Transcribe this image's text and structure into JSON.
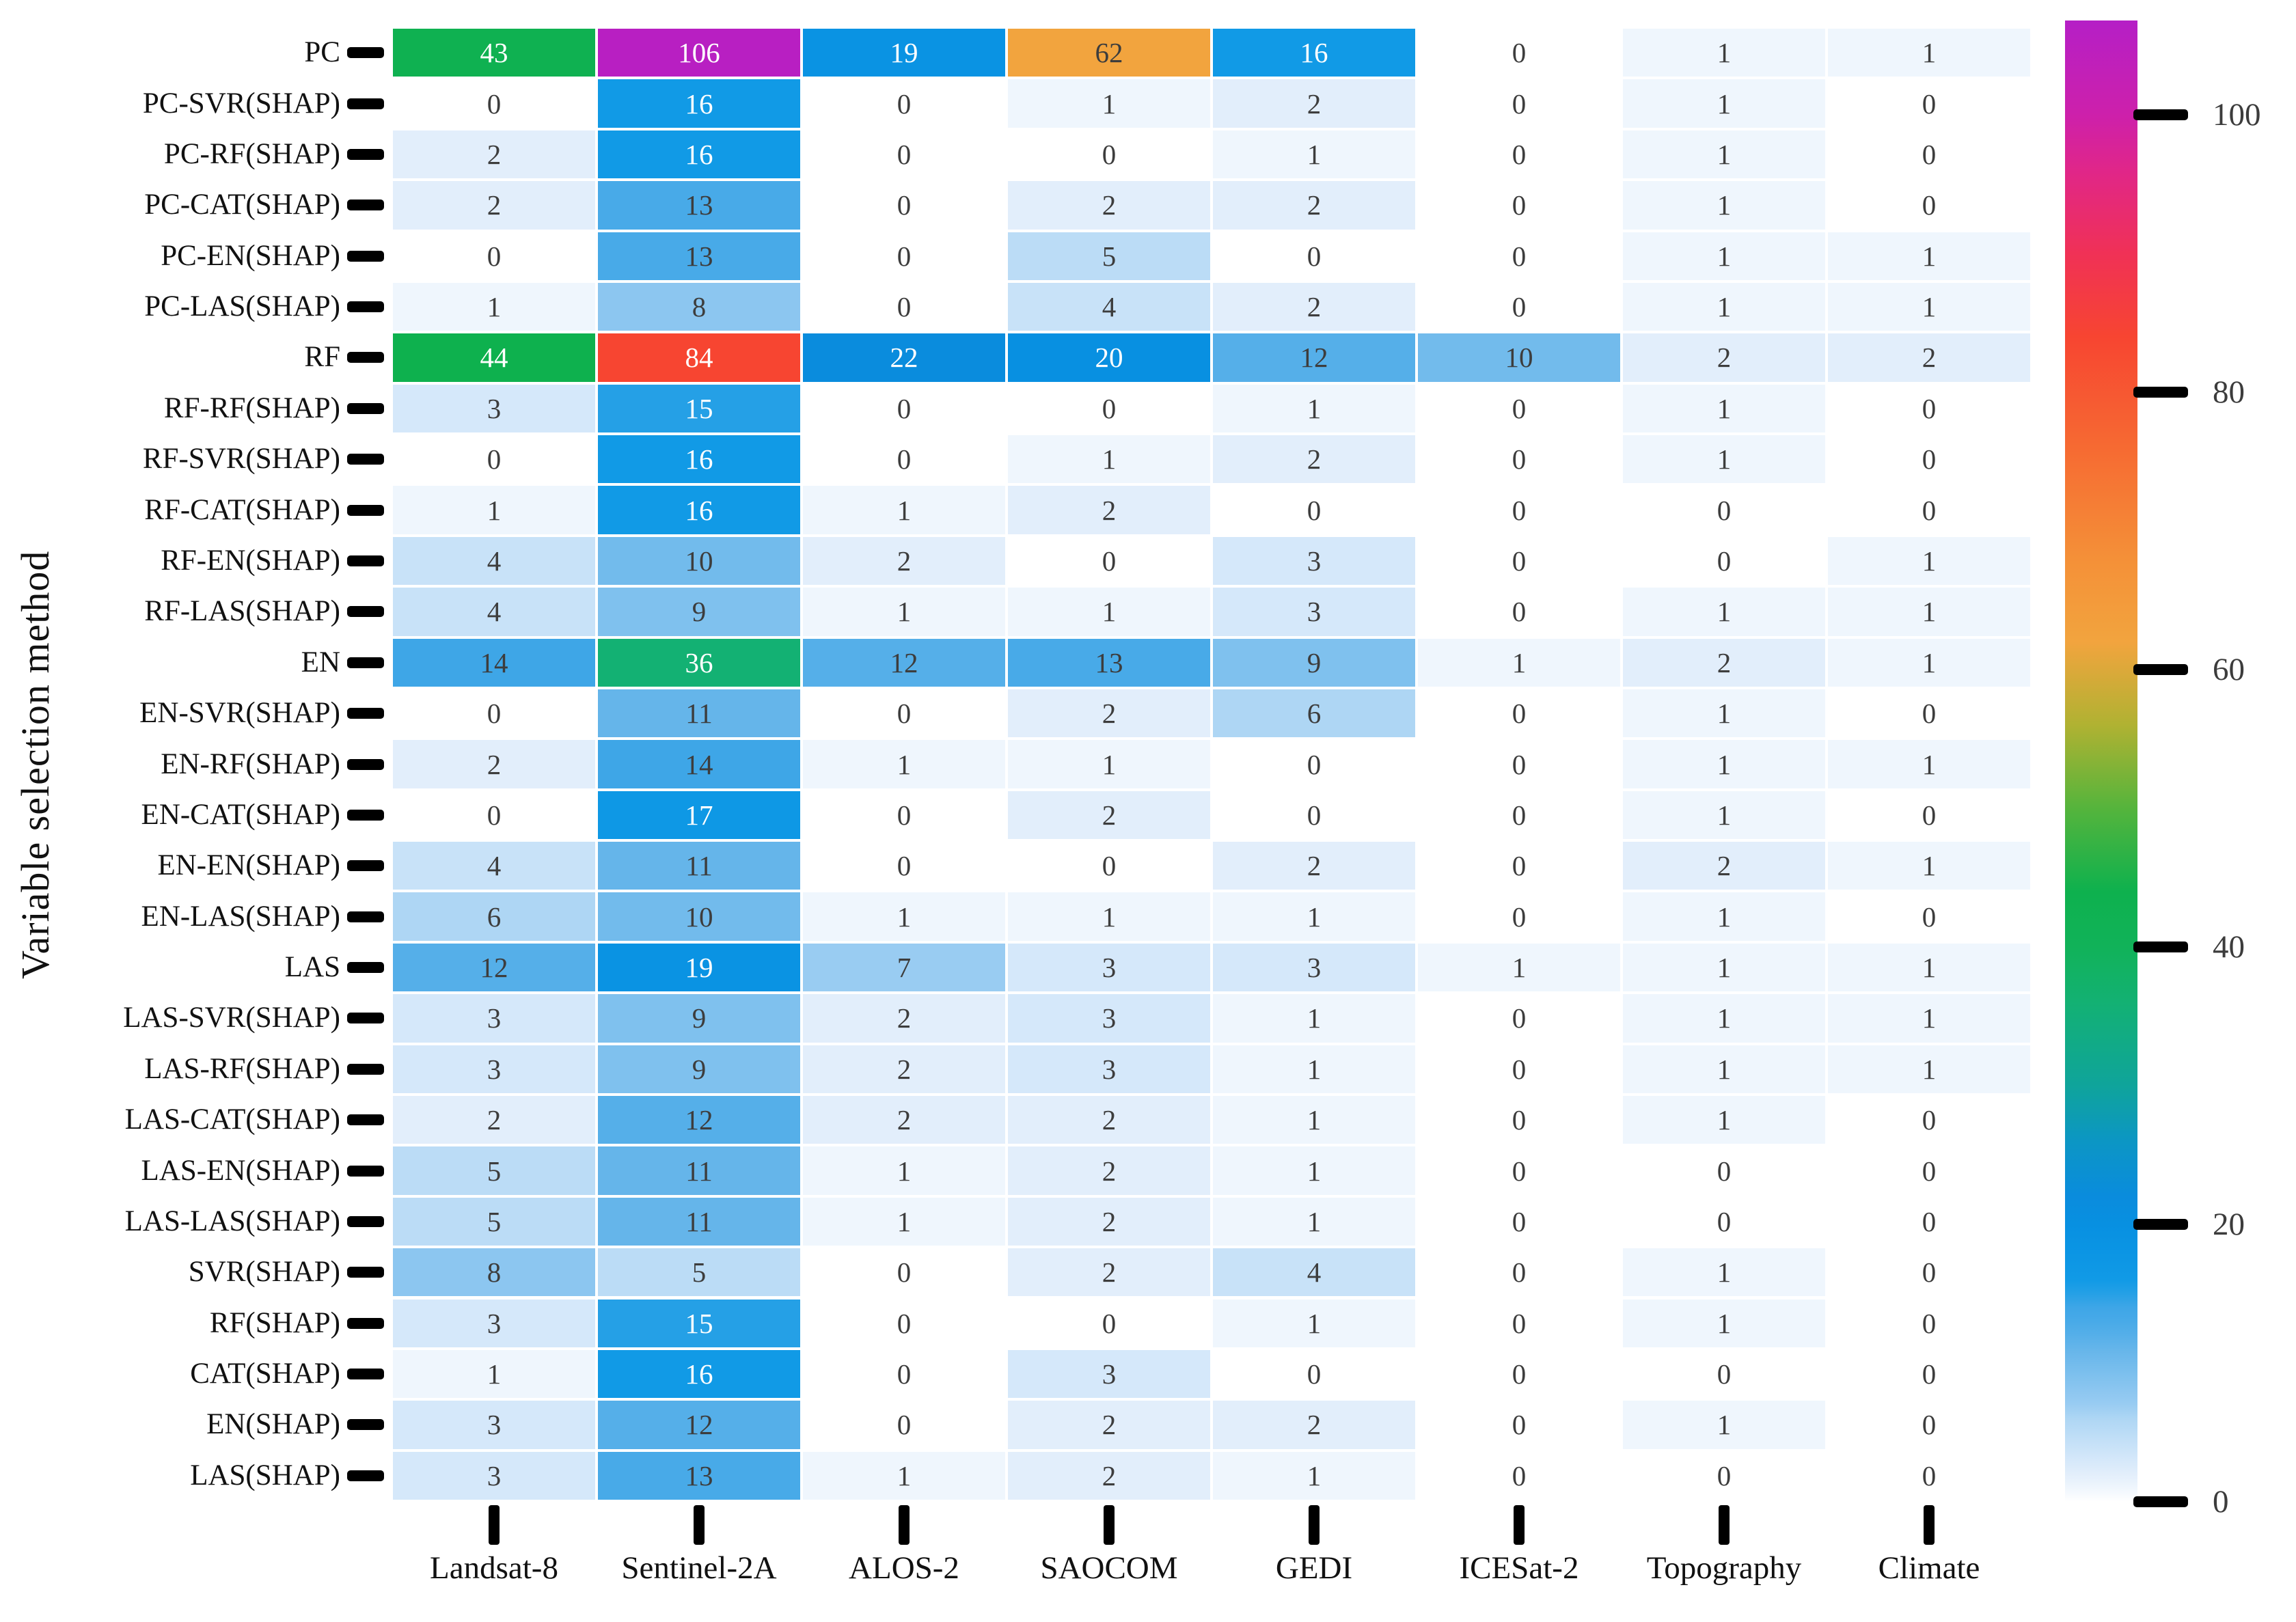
{
  "chart_data": {
    "type": "heatmap",
    "title": "",
    "ylabel": "Variable selection method",
    "xlabel": "",
    "columns": [
      "Landsat-8",
      "Sentinel-2A",
      "ALOS-2",
      "SAOCOM",
      "GEDI",
      "ICESat-2",
      "Topography",
      "Climate"
    ],
    "rows": [
      "PC",
      "PC-SVR(SHAP)",
      "PC-RF(SHAP)",
      "PC-CAT(SHAP)",
      "PC-EN(SHAP)",
      "PC-LAS(SHAP)",
      "RF",
      "RF-RF(SHAP)",
      "RF-SVR(SHAP)",
      "RF-CAT(SHAP)",
      "RF-EN(SHAP)",
      "RF-LAS(SHAP)",
      "EN",
      "EN-SVR(SHAP)",
      "EN-RF(SHAP)",
      "EN-CAT(SHAP)",
      "EN-EN(SHAP)",
      "EN-LAS(SHAP)",
      "LAS",
      "LAS-SVR(SHAP)",
      "LAS-RF(SHAP)",
      "LAS-CAT(SHAP)",
      "LAS-EN(SHAP)",
      "LAS-LAS(SHAP)",
      "SVR(SHAP)",
      "RF(SHAP)",
      "CAT(SHAP)",
      "EN(SHAP)",
      "LAS(SHAP)"
    ],
    "values": [
      [
        43,
        106,
        19,
        62,
        16,
        0,
        1,
        1
      ],
      [
        0,
        16,
        0,
        1,
        2,
        0,
        1,
        0
      ],
      [
        2,
        16,
        0,
        0,
        1,
        0,
        1,
        0
      ],
      [
        2,
        13,
        0,
        2,
        2,
        0,
        1,
        0
      ],
      [
        0,
        13,
        0,
        5,
        0,
        0,
        1,
        1
      ],
      [
        1,
        8,
        0,
        4,
        2,
        0,
        1,
        1
      ],
      [
        44,
        84,
        22,
        20,
        12,
        10,
        2,
        2
      ],
      [
        3,
        15,
        0,
        0,
        1,
        0,
        1,
        0
      ],
      [
        0,
        16,
        0,
        1,
        2,
        0,
        1,
        0
      ],
      [
        1,
        16,
        1,
        2,
        0,
        0,
        0,
        0
      ],
      [
        4,
        10,
        2,
        0,
        3,
        0,
        0,
        1
      ],
      [
        4,
        9,
        1,
        1,
        3,
        0,
        1,
        1
      ],
      [
        14,
        36,
        12,
        13,
        9,
        1,
        2,
        1
      ],
      [
        0,
        11,
        0,
        2,
        6,
        0,
        1,
        0
      ],
      [
        2,
        14,
        1,
        1,
        0,
        0,
        1,
        1
      ],
      [
        0,
        17,
        0,
        2,
        0,
        0,
        1,
        0
      ],
      [
        4,
        11,
        0,
        0,
        2,
        0,
        2,
        1
      ],
      [
        6,
        10,
        1,
        1,
        1,
        0,
        1,
        0
      ],
      [
        12,
        19,
        7,
        3,
        3,
        1,
        1,
        1
      ],
      [
        3,
        9,
        2,
        3,
        1,
        0,
        1,
        1
      ],
      [
        3,
        9,
        2,
        3,
        1,
        0,
        1,
        1
      ],
      [
        2,
        12,
        2,
        2,
        1,
        0,
        1,
        0
      ],
      [
        5,
        11,
        1,
        2,
        1,
        0,
        0,
        0
      ],
      [
        5,
        11,
        1,
        2,
        1,
        0,
        0,
        0
      ],
      [
        8,
        5,
        0,
        2,
        4,
        0,
        1,
        0
      ],
      [
        3,
        15,
        0,
        0,
        1,
        0,
        1,
        0
      ],
      [
        1,
        16,
        0,
        3,
        0,
        0,
        0,
        0
      ],
      [
        3,
        12,
        0,
        2,
        2,
        0,
        1,
        0
      ],
      [
        3,
        13,
        1,
        2,
        1,
        0,
        0,
        0
      ]
    ],
    "colorbar": {
      "ticks": [
        0,
        20,
        40,
        60,
        80,
        100
      ],
      "vmax": 106.8,
      "legend_position": "right"
    },
    "colormap": [
      {
        "v": 0,
        "color": "#ffffff"
      },
      {
        "v": 1,
        "color": "#eff6fd"
      },
      {
        "v": 2,
        "color": "#e2eefb"
      },
      {
        "v": 3,
        "color": "#d5e8fa"
      },
      {
        "v": 4,
        "color": "#c8e2f8"
      },
      {
        "v": 5,
        "color": "#bbdcf6"
      },
      {
        "v": 6,
        "color": "#aed6f4"
      },
      {
        "v": 7,
        "color": "#99ccf2"
      },
      {
        "v": 8,
        "color": "#8cc6f0"
      },
      {
        "v": 9,
        "color": "#7fc1ee"
      },
      {
        "v": 10,
        "color": "#72bbec"
      },
      {
        "v": 11,
        "color": "#65b5ea"
      },
      {
        "v": 12,
        "color": "#55afe9"
      },
      {
        "v": 13,
        "color": "#48aae8"
      },
      {
        "v": 14,
        "color": "#3ea6e7"
      },
      {
        "v": 15,
        "color": "#25a0e6"
      },
      {
        "v": 16,
        "color": "#119ae6"
      },
      {
        "v": 18,
        "color": "#0b95e4"
      },
      {
        "v": 20,
        "color": "#0890e1"
      },
      {
        "v": 22,
        "color": "#0a8cdd"
      },
      {
        "v": 26,
        "color": "#0c96c4"
      },
      {
        "v": 30,
        "color": "#0fa49b"
      },
      {
        "v": 36,
        "color": "#13b173"
      },
      {
        "v": 40,
        "color": "#11b259"
      },
      {
        "v": 44,
        "color": "#0eb14e"
      },
      {
        "v": 50,
        "color": "#55b43c"
      },
      {
        "v": 56,
        "color": "#b0b232"
      },
      {
        "v": 62,
        "color": "#f2a43e"
      },
      {
        "v": 68,
        "color": "#f49038"
      },
      {
        "v": 76,
        "color": "#f66a32"
      },
      {
        "v": 84,
        "color": "#f74531"
      },
      {
        "v": 90,
        "color": "#f03156"
      },
      {
        "v": 96,
        "color": "#e02689"
      },
      {
        "v": 100,
        "color": "#cd20ab"
      },
      {
        "v": 107,
        "color": "#b51fc6"
      }
    ],
    "cell_text_dark_color": "#3d3d3d",
    "cell_text_light_color": "#ffffff"
  }
}
